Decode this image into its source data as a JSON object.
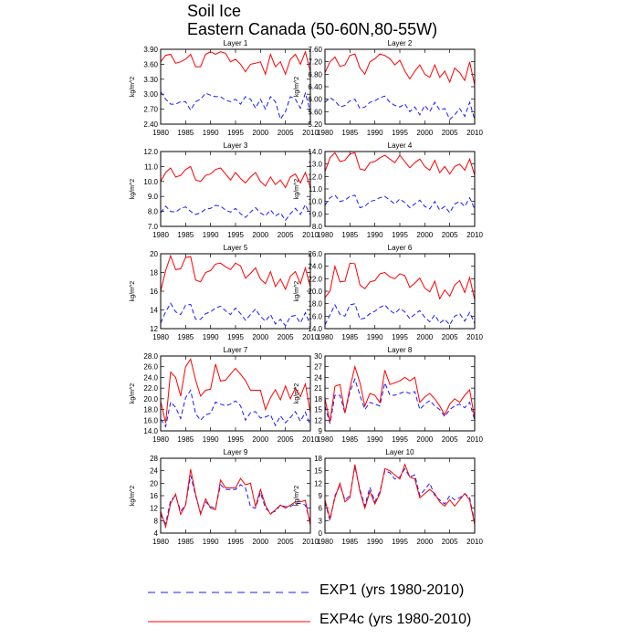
{
  "header": {
    "title": "Soil Ice",
    "subtitle": "Eastern Canada (50-60N,80-55W)"
  },
  "legend": [
    {
      "label": "EXP1 (yrs 1980-2010)",
      "color": "#1a1aff",
      "style": "dashed"
    },
    {
      "label": "EXP4c (yrs 1980-2010)",
      "color": "#ff0000",
      "style": "solid"
    }
  ],
  "chart_data": [
    {
      "type": "line",
      "title": "Layer 1",
      "ylabel": "kg/m^2",
      "xlim": [
        1980,
        2010
      ],
      "ylim": [
        2.4,
        3.9
      ],
      "yticks": [
        "2.40",
        "2.70",
        "3.00",
        "3.30",
        "3.60",
        "3.90"
      ],
      "xticks": [
        "1980",
        "1985",
        "1990",
        "1995",
        "2000",
        "2005",
        "2010"
      ],
      "x_start": 1980,
      "series": [
        {
          "name": "EXP1",
          "values": [
            3.05,
            2.9,
            2.8,
            2.8,
            2.85,
            2.85,
            2.68,
            2.85,
            2.9,
            3.02,
            2.98,
            2.95,
            2.95,
            2.88,
            2.85,
            2.9,
            2.8,
            2.95,
            2.9,
            2.72,
            2.9,
            2.7,
            2.95,
            2.85,
            2.5,
            2.65,
            2.95,
            2.9,
            2.72,
            3.02,
            2.65
          ]
        },
        {
          "name": "EXP4c",
          "values": [
            3.65,
            3.78,
            3.8,
            3.62,
            3.65,
            3.7,
            3.8,
            3.55,
            3.55,
            3.8,
            3.85,
            3.8,
            3.85,
            3.82,
            3.65,
            3.7,
            3.6,
            3.45,
            3.6,
            3.62,
            3.65,
            3.4,
            3.8,
            3.55,
            3.65,
            3.4,
            3.7,
            3.8,
            3.6,
            3.85,
            3.45
          ]
        }
      ]
    },
    {
      "type": "line",
      "title": "Layer 2",
      "ylabel": "kg/m^2",
      "xlim": [
        1980,
        2010
      ],
      "ylim": [
        5.2,
        7.6
      ],
      "yticks": [
        "5.20",
        "5.60",
        "6.00",
        "6.40",
        "6.80",
        "7.20",
        "7.60"
      ],
      "xticks": [
        "1980",
        "1985",
        "1990",
        "1995",
        "2000",
        "2005",
        "2010"
      ],
      "x_start": 1980,
      "series": [
        {
          "name": "EXP1",
          "values": [
            5.9,
            6.05,
            5.95,
            5.75,
            5.8,
            5.95,
            6.0,
            5.7,
            5.75,
            5.9,
            5.95,
            6.05,
            6.1,
            5.9,
            5.8,
            5.75,
            5.85,
            5.6,
            5.75,
            5.5,
            5.8,
            5.6,
            5.9,
            5.65,
            5.7,
            5.35,
            5.5,
            5.7,
            5.45,
            5.9,
            5.35
          ]
        },
        {
          "name": "EXP4c",
          "values": [
            6.85,
            7.2,
            7.35,
            7.05,
            7.1,
            7.4,
            7.45,
            7.0,
            6.8,
            7.2,
            7.3,
            7.45,
            7.4,
            7.3,
            7.1,
            7.25,
            6.9,
            6.65,
            6.9,
            7.1,
            6.8,
            6.7,
            7.1,
            6.7,
            6.9,
            6.55,
            7.0,
            6.85,
            6.6,
            7.2,
            6.45
          ]
        }
      ]
    },
    {
      "type": "line",
      "title": "Layer 3",
      "ylabel": "kg/m^2",
      "xlim": [
        1980,
        2010
      ],
      "ylim": [
        7.0,
        12.0
      ],
      "yticks": [
        "7.0",
        "8.0",
        "9.0",
        "10.0",
        "11.0",
        "12.0"
      ],
      "xticks": [
        "1980",
        "1985",
        "1990",
        "1995",
        "2000",
        "2005",
        "2010"
      ],
      "x_start": 1980,
      "series": [
        {
          "name": "EXP1",
          "values": [
            7.9,
            8.35,
            8.0,
            7.95,
            8.2,
            8.3,
            8.0,
            7.8,
            7.9,
            8.15,
            8.2,
            8.4,
            8.35,
            8.1,
            7.95,
            8.2,
            7.85,
            7.6,
            7.95,
            8.25,
            7.9,
            7.7,
            8.1,
            7.7,
            7.9,
            7.4,
            7.85,
            8.2,
            7.8,
            8.45,
            7.75
          ]
        },
        {
          "name": "EXP4c",
          "values": [
            10.0,
            10.6,
            10.9,
            10.3,
            10.4,
            10.8,
            11.0,
            10.1,
            10.0,
            10.4,
            10.5,
            10.8,
            10.9,
            10.5,
            10.1,
            10.6,
            10.2,
            9.9,
            10.3,
            10.6,
            10.0,
            9.7,
            10.3,
            9.8,
            10.1,
            9.6,
            10.3,
            10.5,
            9.9,
            10.6,
            9.6
          ]
        }
      ]
    },
    {
      "type": "line",
      "title": "Layer 4",
      "ylabel": "kg/m^2",
      "xlim": [
        1980,
        2010
      ],
      "ylim": [
        8.0,
        14.0
      ],
      "yticks": [
        "8.0",
        "9.0",
        "10.0",
        "11.0",
        "12.0",
        "13.0",
        "14.0"
      ],
      "xticks": [
        "1980",
        "1985",
        "1990",
        "1995",
        "2000",
        "2005",
        "2010"
      ],
      "x_start": 1980,
      "series": [
        {
          "name": "EXP1",
          "values": [
            9.7,
            10.3,
            10.5,
            10.0,
            10.1,
            10.4,
            10.5,
            9.5,
            9.6,
            10.0,
            10.1,
            10.3,
            10.4,
            10.1,
            9.8,
            10.2,
            9.9,
            9.5,
            9.8,
            10.1,
            9.6,
            9.4,
            10.0,
            9.3,
            9.6,
            9.1,
            9.8,
            10.0,
            9.6,
            10.3,
            9.4
          ]
        },
        {
          "name": "EXP4c",
          "values": [
            12.4,
            13.5,
            13.9,
            13.2,
            13.3,
            13.8,
            13.9,
            12.6,
            12.5,
            13.1,
            13.2,
            13.5,
            13.7,
            13.4,
            13.1,
            13.7,
            13.2,
            12.7,
            13.1,
            13.4,
            12.8,
            12.5,
            13.3,
            12.3,
            12.8,
            12.2,
            12.8,
            13.0,
            12.5,
            13.4,
            12.1
          ]
        }
      ]
    },
    {
      "type": "line",
      "title": "Layer 5",
      "ylabel": "kg/m^2",
      "xlim": [
        1980,
        2010
      ],
      "ylim": [
        12,
        20
      ],
      "yticks": [
        "12",
        "14",
        "16",
        "18",
        "20"
      ],
      "xticks": [
        "1980",
        "1985",
        "1990",
        "1995",
        "2000",
        "2005",
        "2010"
      ],
      "x_start": 1980,
      "series": [
        {
          "name": "EXP1",
          "values": [
            12.6,
            13.8,
            14.7,
            13.8,
            13.5,
            14.5,
            14.6,
            13.0,
            13.0,
            13.6,
            13.8,
            14.2,
            14.4,
            13.9,
            13.5,
            14.2,
            13.6,
            12.9,
            13.5,
            14.1,
            13.3,
            12.8,
            13.5,
            12.5,
            13.0,
            12.3,
            13.3,
            13.4,
            12.6,
            13.7,
            12.4
          ]
        },
        {
          "name": "EXP4c",
          "values": [
            16.0,
            18.2,
            19.8,
            18.3,
            18.4,
            19.6,
            19.7,
            17.2,
            17.0,
            18.0,
            18.2,
            18.9,
            19.0,
            18.6,
            18.3,
            19.0,
            18.7,
            17.4,
            17.9,
            18.5,
            17.3,
            16.8,
            18.1,
            16.5,
            17.3,
            16.2,
            17.6,
            18.1,
            16.8,
            18.5,
            16.4
          ]
        }
      ]
    },
    {
      "type": "line",
      "title": "Layer 6",
      "ylabel": "kg/m^2",
      "xlim": [
        1980,
        2010
      ],
      "ylim": [
        14.0,
        26.0
      ],
      "yticks": [
        "14.0",
        "16.0",
        "18.0",
        "20.0",
        "22.0",
        "24.0",
        "26.0"
      ],
      "xticks": [
        "1980",
        "1985",
        "1990",
        "1995",
        "2000",
        "2005",
        "2010"
      ],
      "x_start": 1980,
      "series": [
        {
          "name": "EXP1",
          "values": [
            14.6,
            16.2,
            17.8,
            16.3,
            16.0,
            17.8,
            18.0,
            15.5,
            15.7,
            16.4,
            16.8,
            17.4,
            17.8,
            16.9,
            16.4,
            17.2,
            16.7,
            15.6,
            16.3,
            16.9,
            15.8,
            15.1,
            16.2,
            14.9,
            15.5,
            14.6,
            16.0,
            16.4,
            15.2,
            16.6,
            14.8
          ]
        },
        {
          "name": "EXP4c",
          "values": [
            19.0,
            20.0,
            24.0,
            21.5,
            21.6,
            24.5,
            24.4,
            21.0,
            20.4,
            21.5,
            21.7,
            22.8,
            23.0,
            22.3,
            22.0,
            22.8,
            22.5,
            20.6,
            21.3,
            22.1,
            20.5,
            19.9,
            21.6,
            18.8,
            20.2,
            19.2,
            21.0,
            21.7,
            19.8,
            22.2,
            18.6
          ]
        }
      ]
    },
    {
      "type": "line",
      "title": "Layer 7",
      "ylabel": "kg/m^2",
      "xlim": [
        1980,
        2010
      ],
      "ylim": [
        14.0,
        28.0
      ],
      "yticks": [
        "14.0",
        "16.0",
        "18.0",
        "20.0",
        "22.0",
        "24.0",
        "26.0",
        "28.0"
      ],
      "xticks": [
        "1980",
        "1985",
        "1990",
        "1995",
        "2000",
        "2005",
        "2010"
      ],
      "x_start": 1980,
      "series": [
        {
          "name": "EXP1",
          "values": [
            16.2,
            14.8,
            19.4,
            18.4,
            16.3,
            20.2,
            21.6,
            17.2,
            16.0,
            17.0,
            17.3,
            19.4,
            19.0,
            18.7,
            19.0,
            19.6,
            18.7,
            16.0,
            17.4,
            17.6,
            16.4,
            16.6,
            17.0,
            15.0,
            16.8,
            15.5,
            16.5,
            17.6,
            15.8,
            17.5,
            15.0
          ]
        },
        {
          "name": "EXP4c",
          "values": [
            19.5,
            15.5,
            25.0,
            24.0,
            20.5,
            26.0,
            27.4,
            23.5,
            20.5,
            21.6,
            21.8,
            26.5,
            23.3,
            23.5,
            24.6,
            25.7,
            24.6,
            23.4,
            21.6,
            21.6,
            21.6,
            18.0,
            20.2,
            21.7,
            19.8,
            22.4,
            20.0,
            22.0,
            20.4,
            22.8,
            17.4
          ]
        }
      ]
    },
    {
      "type": "line",
      "title": "Layer 8",
      "ylabel": "kg/m^2",
      "xlim": [
        1980,
        2010
      ],
      "ylim": [
        9,
        30
      ],
      "yticks": [
        "9",
        "12",
        "15",
        "18",
        "21",
        "24",
        "27",
        "30"
      ],
      "xticks": [
        "1980",
        "1985",
        "1990",
        "1995",
        "2000",
        "2005",
        "2010"
      ],
      "x_start": 1980,
      "series": [
        {
          "name": "EXP1",
          "values": [
            16.0,
            11.0,
            19.0,
            19.0,
            14.0,
            20.0,
            23.5,
            19.0,
            15.0,
            17.0,
            16.5,
            16.0,
            22.5,
            19.0,
            19.0,
            19.5,
            20.0,
            19.5,
            20.0,
            15.0,
            16.5,
            17.5,
            16.0,
            15.0,
            13.0,
            15.0,
            16.0,
            16.5,
            15.5,
            17.0,
            12.0
          ]
        },
        {
          "name": "EXP4c",
          "values": [
            18.0,
            11.5,
            21.5,
            22.0,
            14.0,
            21.0,
            27.0,
            22.5,
            16.0,
            19.5,
            19.0,
            17.0,
            26.0,
            22.0,
            22.5,
            23.0,
            24.0,
            23.0,
            24.0,
            17.0,
            18.5,
            19.5,
            18.0,
            16.0,
            13.5,
            16.5,
            18.0,
            17.0,
            19.0,
            20.5,
            12.5
          ]
        }
      ]
    },
    {
      "type": "line",
      "title": "Layer 9",
      "ylabel": "kg/m^2",
      "xlim": [
        1980,
        2010
      ],
      "ylim": [
        4,
        28
      ],
      "yticks": [
        "4",
        "8",
        "12",
        "16",
        "20",
        "24",
        "28"
      ],
      "xticks": [
        "1980",
        "1985",
        "1990",
        "1995",
        "2000",
        "2005",
        "2010"
      ],
      "x_start": 1980,
      "series": [
        {
          "name": "EXP1",
          "values": [
            10.0,
            7.0,
            14.5,
            16.0,
            11.0,
            13.0,
            22.5,
            16.0,
            10.5,
            14.0,
            12.5,
            12.0,
            19.5,
            18.0,
            18.0,
            18.0,
            19.5,
            18.5,
            12.5,
            12.0,
            17.0,
            12.0,
            10.5,
            11.0,
            13.0,
            12.5,
            12.5,
            13.5,
            13.5,
            13.0,
            7.5
          ]
        },
        {
          "name": "EXP4c",
          "values": [
            11.0,
            6.0,
            13.5,
            16.5,
            10.0,
            13.0,
            24.5,
            16.5,
            10.0,
            15.0,
            12.0,
            11.5,
            21.0,
            18.5,
            18.5,
            18.5,
            21.5,
            19.5,
            20.0,
            12.5,
            18.0,
            13.0,
            10.0,
            11.5,
            13.0,
            12.0,
            13.0,
            14.0,
            14.0,
            14.5,
            6.5
          ]
        }
      ]
    },
    {
      "type": "line",
      "title": "Layer 10",
      "ylabel": "kg/m^2",
      "xlim": [
        1980,
        2010
      ],
      "ylim": [
        0,
        18
      ],
      "yticks": [
        "0",
        "3",
        "6",
        "9",
        "12",
        "15",
        "18"
      ],
      "xticks": [
        "1980",
        "1985",
        "1990",
        "1995",
        "2000",
        "2005",
        "2010"
      ],
      "x_start": 1980,
      "series": [
        {
          "name": "EXP1",
          "values": [
            7.5,
            3.0,
            9.0,
            11.5,
            8.0,
            9.0,
            16.0,
            10.5,
            6.5,
            11.0,
            7.5,
            10.0,
            15.0,
            14.5,
            13.0,
            13.5,
            15.5,
            13.5,
            14.0,
            9.0,
            10.5,
            12.0,
            9.0,
            8.0,
            7.0,
            9.0,
            8.0,
            8.5,
            9.5,
            8.5,
            2.5
          ]
        },
        {
          "name": "EXP4c",
          "values": [
            8.0,
            3.5,
            8.5,
            12.0,
            7.5,
            8.5,
            16.5,
            10.0,
            6.0,
            10.0,
            7.0,
            9.5,
            15.5,
            15.0,
            14.0,
            13.0,
            16.5,
            13.5,
            13.0,
            8.5,
            9.5,
            10.5,
            9.5,
            7.5,
            6.5,
            8.0,
            6.5,
            8.0,
            9.5,
            8.0,
            2.0
          ]
        }
      ]
    }
  ]
}
